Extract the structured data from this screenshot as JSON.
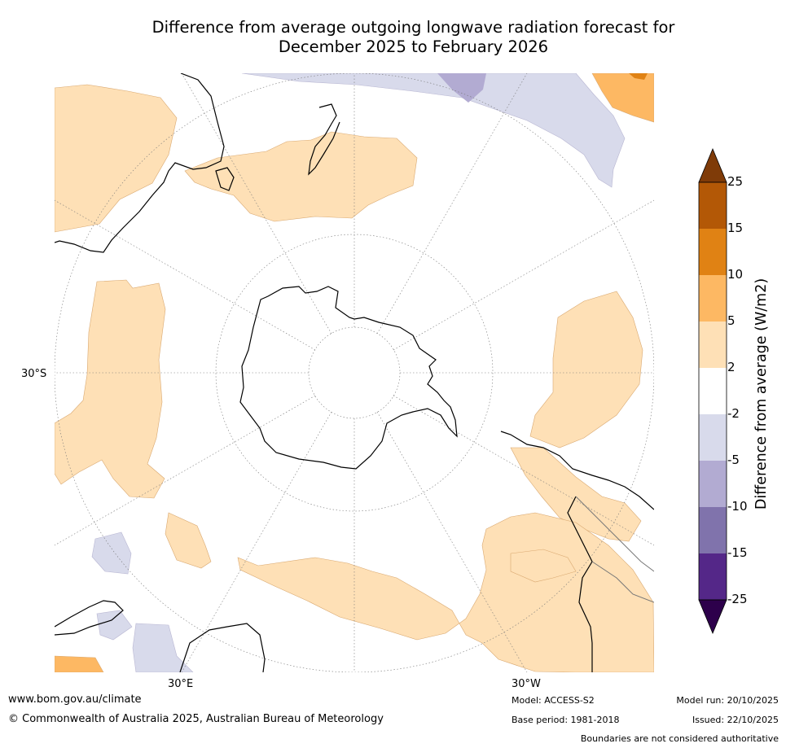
{
  "title_line1": "Difference from average outgoing longwave radiation forecast for",
  "title_line2": "December 2025 to February 2026",
  "map": {
    "projection": "south polar stereographic",
    "latitude_labels": [
      "30°S"
    ],
    "longitude_labels": [
      "30°E",
      "30°W"
    ]
  },
  "colorbar": {
    "title": "Difference from average (W/m2)",
    "levels": [
      "25",
      "15",
      "10",
      "5",
      "2",
      "-2",
      "-5",
      "-10",
      "-15",
      "-25"
    ],
    "colors": {
      "gt25": "#7f3b08",
      "15_25": "#b35806",
      "10_15": "#e08214",
      "5_10": "#fdb863",
      "2_5": "#fee0b6",
      "neutral": "#ffffff",
      "m5_m2": "#d8daeb",
      "m10_m5": "#b2abd2",
      "m15_m10": "#8073ac",
      "m25_m15": "#542788",
      "lt_m25": "#2d004b"
    }
  },
  "footer": {
    "url": "www.bom.gov.au/climate",
    "copyright": "© Commonwealth of Australia 2025, Australian Bureau of Meteorology",
    "model": "Model: ACCESS-S2",
    "base_period": "Base period: 1981-2018",
    "model_run": "Model run: 20/10/2025",
    "issued": "Issued: 22/10/2025",
    "disclaimer": "Boundaries are not considered authoritative"
  }
}
